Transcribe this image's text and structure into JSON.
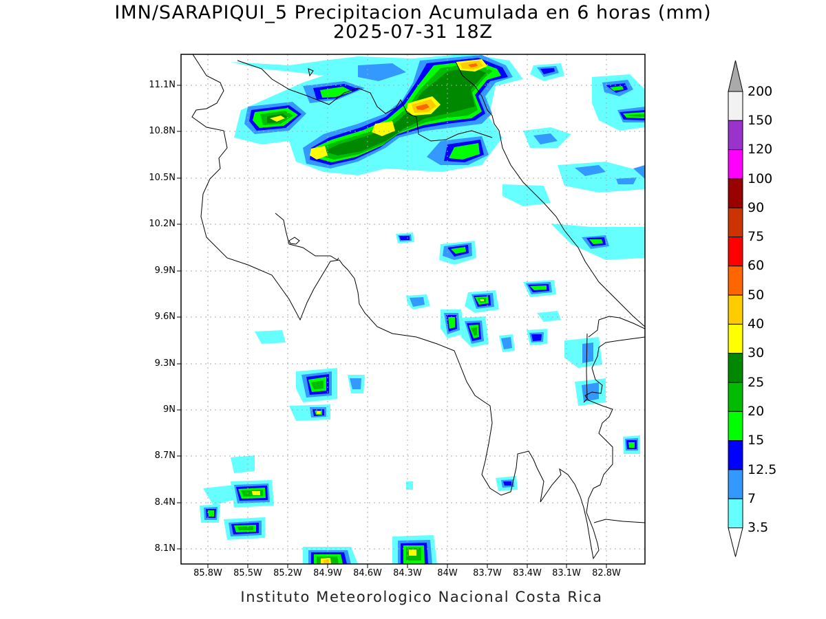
{
  "title": {
    "line1": "IMN/SARAPIQUI_5 Precipitacion Acumulada en 6 horas (mm)",
    "line2": "2025-07-31 18Z"
  },
  "credit": "Instituto Meteorologico Nacional Costa Rica",
  "axes": {
    "lat_labels": [
      "11.1N",
      "10.8N",
      "10.5N",
      "10.2N",
      "9.9N",
      "9.6N",
      "9.3N",
      "9N",
      "8.7N",
      "8.4N",
      "8.1N"
    ],
    "lon_labels": [
      "85.8W",
      "85.5W",
      "85.2W",
      "84.9W",
      "84.6W",
      "84.3W",
      "84W",
      "83.7W",
      "83.4W",
      "83.1W",
      "82.8W"
    ]
  },
  "colorbar": {
    "levels": [
      "200",
      "150",
      "120",
      "100",
      "90",
      "75",
      "60",
      "50",
      "40",
      "30",
      "25",
      "20",
      "15",
      "12.5",
      "7",
      "3.5"
    ],
    "colors": [
      "#f2f2f2",
      "#9933cc",
      "#ff00ff",
      "#990000",
      "#cc3300",
      "#ff0000",
      "#ff6600",
      "#ffcc00",
      "#ffff00",
      "#008800",
      "#00bb00",
      "#00ff00",
      "#0000ff",
      "#3399ff",
      "#66ffff"
    ],
    "over_color": "#aaaaaa",
    "under_color": "#ffffff"
  },
  "legend_colors": {
    "light_cyan": "#66ffff",
    "light_blue": "#3399ff",
    "blue": "#0000ff",
    "bright_green": "#00ff00",
    "green": "#00bb00",
    "dark_green": "#008800",
    "yellow": "#ffff00",
    "gold": "#ffcc00",
    "orange": "#ff6600"
  }
}
